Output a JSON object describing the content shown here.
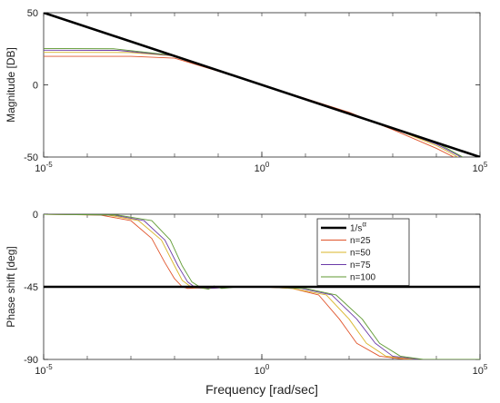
{
  "chart_data": [
    {
      "type": "line",
      "panel": "magnitude",
      "title": "",
      "xlabel": "",
      "ylabel": "Magnitude [DB]",
      "xscale": "log",
      "xlim": [
        1e-05,
        100000
      ],
      "ylim": [
        -50,
        50
      ],
      "xticks": [
        {
          "value": 1e-05,
          "base": "10",
          "exp": "-5"
        },
        {
          "value": 1,
          "base": "10",
          "exp": "0"
        },
        {
          "value": 100000,
          "base": "10",
          "exp": "5"
        }
      ],
      "yticks": [
        {
          "value": 50,
          "label": "50"
        },
        {
          "value": 0,
          "label": "0"
        },
        {
          "value": -50,
          "label": "-50"
        }
      ],
      "grid": false,
      "series": [
        {
          "name": "1/s^α",
          "color": "#000000",
          "width": 2.6,
          "points": [
            [
              1e-05,
              50
            ],
            [
              100000,
              -50
            ]
          ]
        },
        {
          "name": "n=25",
          "color": "#e0542b",
          "width": 0.9,
          "points": [
            [
              1e-05,
              19.8
            ],
            [
              0.001,
              19.8
            ],
            [
              0.01,
              18.5
            ],
            [
              0.1,
              9.5
            ],
            [
              1,
              0
            ],
            [
              10,
              -9.5
            ],
            [
              100,
              -19
            ],
            [
              1000,
              -31
            ],
            [
              10000,
              -44
            ],
            [
              25000,
              -50
            ]
          ]
        },
        {
          "name": "n=50",
          "color": "#d8b52a",
          "width": 0.9,
          "points": [
            [
              1e-05,
              22.5
            ],
            [
              0.001,
              22.4
            ],
            [
              0.01,
              20
            ],
            [
              0.1,
              9.8
            ],
            [
              1,
              0
            ],
            [
              10,
              -9.8
            ],
            [
              100,
              -20
            ],
            [
              1000,
              -30
            ],
            [
              10000,
              -42
            ],
            [
              31000,
              -50
            ]
          ]
        },
        {
          "name": "n=75",
          "color": "#6b3aa8",
          "width": 0.9,
          "points": [
            [
              1e-05,
              24
            ],
            [
              0.0005,
              23.9
            ],
            [
              0.01,
              20.2
            ],
            [
              0.1,
              10
            ],
            [
              1,
              0
            ],
            [
              10,
              -10
            ],
            [
              100,
              -20
            ],
            [
              1000,
              -30
            ],
            [
              10000,
              -41
            ],
            [
              37000,
              -50
            ]
          ]
        },
        {
          "name": "n=100",
          "color": "#5f9a32",
          "width": 0.9,
          "points": [
            [
              1e-05,
              25.2
            ],
            [
              0.0004,
              25
            ],
            [
              0.01,
              20.4
            ],
            [
              0.1,
              10
            ],
            [
              1,
              0
            ],
            [
              10,
              -10
            ],
            [
              100,
              -20
            ],
            [
              1000,
              -30
            ],
            [
              10000,
              -40
            ],
            [
              40000,
              -50
            ]
          ]
        }
      ]
    },
    {
      "type": "line",
      "panel": "phase",
      "title": "",
      "xlabel": "Frequency [rad/sec]",
      "ylabel": "Phase shift [deg]",
      "xscale": "log",
      "xlim": [
        1e-05,
        100000
      ],
      "ylim": [
        -90,
        0
      ],
      "xticks": [
        {
          "value": 1e-05,
          "base": "10",
          "exp": "-5"
        },
        {
          "value": 1,
          "base": "10",
          "exp": "0"
        },
        {
          "value": 100000,
          "base": "10",
          "exp": "5"
        }
      ],
      "yticks": [
        {
          "value": 0,
          "label": "0"
        },
        {
          "value": -45,
          "label": "-45"
        },
        {
          "value": -90,
          "label": "-90"
        }
      ],
      "grid": false,
      "legend": {
        "position": "top-right"
      },
      "series": [
        {
          "name": "1/s^α",
          "label": "1/s",
          "label_sup": "α",
          "color": "#000000",
          "width": 2.6,
          "points": [
            [
              1e-05,
              -45
            ],
            [
              100000,
              -45
            ]
          ]
        },
        {
          "name": "n=25",
          "label": "n=25",
          "color": "#e0542b",
          "width": 0.9,
          "points": [
            [
              1e-05,
              0
            ],
            [
              0.0002,
              -0.5
            ],
            [
              0.001,
              -4
            ],
            [
              0.003,
              -15
            ],
            [
              0.006,
              -30
            ],
            [
              0.01,
              -40
            ],
            [
              0.015,
              -45
            ],
            [
              0.02,
              -46
            ],
            [
              0.05,
              -45.5
            ],
            [
              0.3,
              -45
            ],
            [
              1,
              -45
            ],
            [
              5,
              -46
            ],
            [
              20,
              -50
            ],
            [
              60,
              -65
            ],
            [
              150,
              -80
            ],
            [
              500,
              -88
            ],
            [
              2000,
              -90
            ],
            [
              100000,
              -90
            ]
          ]
        },
        {
          "name": "n=50",
          "label": "n=50",
          "color": "#d8b52a",
          "width": 0.9,
          "points": [
            [
              1e-05,
              0
            ],
            [
              0.0003,
              -0.5
            ],
            [
              0.0015,
              -4
            ],
            [
              0.005,
              -16
            ],
            [
              0.01,
              -32
            ],
            [
              0.015,
              -41
            ],
            [
              0.025,
              -45.5
            ],
            [
              0.05,
              -46
            ],
            [
              0.3,
              -45
            ],
            [
              1,
              -45
            ],
            [
              5,
              -46
            ],
            [
              30,
              -50
            ],
            [
              100,
              -65
            ],
            [
              250,
              -80
            ],
            [
              700,
              -88
            ],
            [
              3000,
              -90
            ],
            [
              100000,
              -90
            ]
          ]
        },
        {
          "name": "n=75",
          "label": "n=75",
          "color": "#6b3aa8",
          "width": 0.9,
          "points": [
            [
              1e-05,
              0
            ],
            [
              0.0004,
              -0.5
            ],
            [
              0.002,
              -4
            ],
            [
              0.006,
              -16
            ],
            [
              0.012,
              -32
            ],
            [
              0.02,
              -42
            ],
            [
              0.03,
              -45.5
            ],
            [
              0.06,
              -46
            ],
            [
              0.3,
              -45
            ],
            [
              1,
              -45
            ],
            [
              8,
              -46
            ],
            [
              40,
              -50
            ],
            [
              150,
              -65
            ],
            [
              400,
              -80
            ],
            [
              1000,
              -88
            ],
            [
              4000,
              -90
            ],
            [
              100000,
              -90
            ]
          ]
        },
        {
          "name": "n=100",
          "label": "n=100",
          "color": "#5f9a32",
          "width": 0.9,
          "points": [
            [
              1e-05,
              0
            ],
            [
              0.0005,
              -0.5
            ],
            [
              0.003,
              -4
            ],
            [
              0.008,
              -16
            ],
            [
              0.015,
              -32
            ],
            [
              0.025,
              -42
            ],
            [
              0.04,
              -45.5
            ],
            [
              0.06,
              -46.5
            ],
            [
              0.08,
              -44.5
            ],
            [
              0.12,
              -46
            ],
            [
              0.3,
              -45
            ],
            [
              1,
              -45
            ],
            [
              10,
              -46
            ],
            [
              50,
              -50
            ],
            [
              200,
              -65
            ],
            [
              500,
              -80
            ],
            [
              1500,
              -88
            ],
            [
              5000,
              -90
            ],
            [
              100000,
              -90
            ]
          ]
        }
      ]
    }
  ]
}
